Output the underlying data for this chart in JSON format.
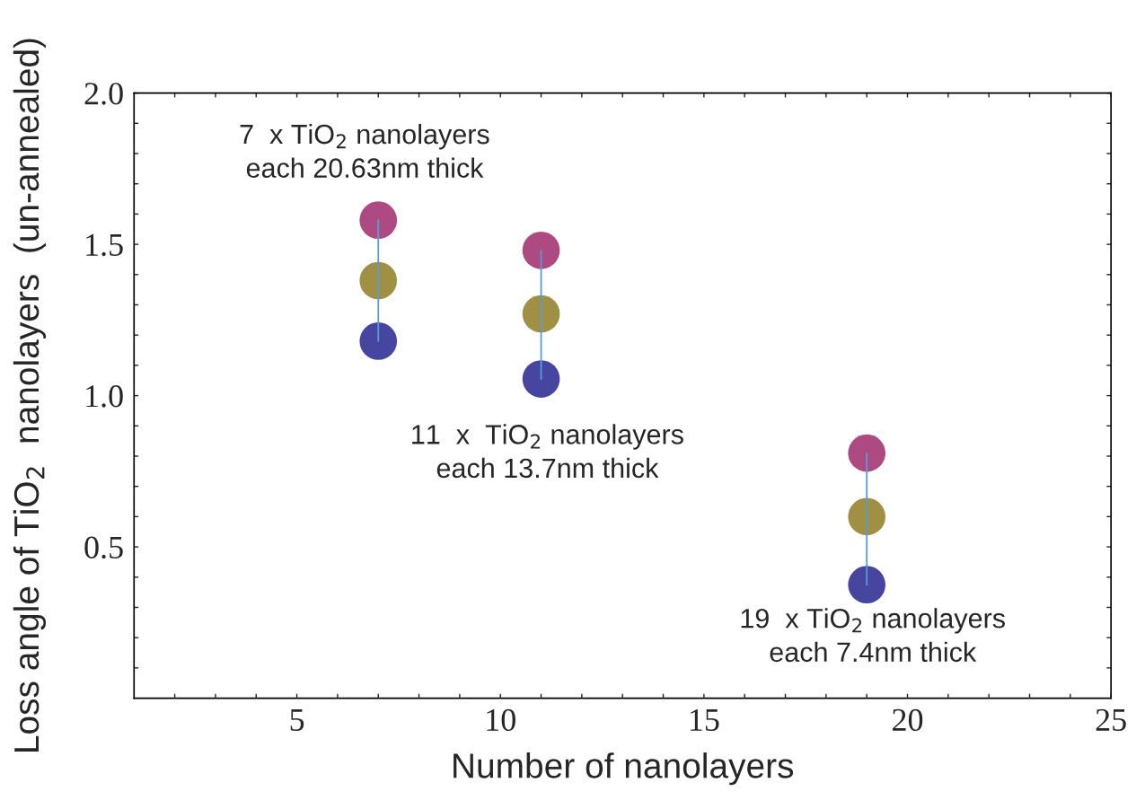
{
  "chart_data": {
    "type": "scatter",
    "xlabel": "Number of nanolayers",
    "ylabel": "Loss angle of TiO$_{2}$  nanolayers  (un-annealed)",
    "xlim": [
      1,
      25
    ],
    "ylim": [
      0,
      2.0
    ],
    "xticks": [
      {
        "value": 2,
        "label": null
      },
      {
        "value": 3,
        "label": null
      },
      {
        "value": 4,
        "label": null
      },
      5,
      {
        "value": 6,
        "label": null
      },
      {
        "value": 7,
        "label": null
      },
      {
        "value": 8,
        "label": null
      },
      {
        "value": 9,
        "label": null
      },
      10,
      {
        "value": 11,
        "label": null
      },
      {
        "value": 12,
        "label": null
      },
      {
        "value": 13,
        "label": null
      },
      {
        "value": 14,
        "label": null
      },
      15,
      {
        "value": 16,
        "label": null
      },
      {
        "value": 17,
        "label": null
      },
      {
        "value": 18,
        "label": null
      },
      {
        "value": 19,
        "label": null
      },
      20,
      {
        "value": 21,
        "label": null
      },
      {
        "value": 22,
        "label": null
      },
      {
        "value": 23,
        "label": null
      },
      {
        "value": 24,
        "label": null
      },
      25
    ],
    "yticks": [
      {
        "value": 0.1,
        "label": null
      },
      {
        "value": 0.2,
        "label": null
      },
      {
        "value": 0.3,
        "label": null
      },
      {
        "value": 0.4,
        "label": null
      },
      {
        "value": 0.5,
        "label": "0.5"
      },
      {
        "value": 0.6,
        "label": null
      },
      {
        "value": 0.7,
        "label": null
      },
      {
        "value": 0.8,
        "label": null
      },
      {
        "value": 0.9,
        "label": null
      },
      {
        "value": 1.0,
        "label": "1.0"
      },
      {
        "value": 1.1,
        "label": null
      },
      {
        "value": 1.2,
        "label": null
      },
      {
        "value": 1.3,
        "label": null
      },
      {
        "value": 1.4,
        "label": null
      },
      {
        "value": 1.5,
        "label": "1.5"
      },
      {
        "value": 1.6,
        "label": null
      },
      {
        "value": 1.7,
        "label": null
      },
      {
        "value": 1.8,
        "label": null
      },
      {
        "value": 1.9,
        "label": null
      },
      {
        "value": 2.0,
        "label": "2.0"
      }
    ],
    "x": [
      7,
      11,
      19
    ],
    "series": [
      {
        "type": "line",
        "color": "#5b9bd5",
        "marker": "none",
        "x": [
          7,
          7
        ],
        "values": [
          1.18,
          1.58
        ]
      },
      {
        "type": "line",
        "color": "#5b9bd5",
        "marker": "none",
        "x": [
          11,
          11
        ],
        "values": [
          1.055,
          1.48
        ]
      },
      {
        "type": "line",
        "color": "#5b9bd5",
        "marker": "none",
        "x": [
          19,
          19
        ],
        "values": [
          0.375,
          0.81
        ]
      },
      {
        "color": "#a8407a",
        "marker": "circle",
        "values": [
          1.58,
          1.48,
          0.81
        ]
      },
      {
        "color": "#9a8a3a",
        "marker": "circle",
        "values": [
          1.38,
          1.27,
          0.6
        ]
      },
      {
        "color": "#3c3c9c",
        "marker": "circle",
        "values": [
          1.18,
          1.055,
          0.375
        ]
      }
    ],
    "grid": false,
    "annotations": [
      "7  x TiO$_{2}$ nanolayers\neach 20.63nm thick",
      "11  x  TiO$_{2}$ nanolayers\neach 13.7nm thick",
      "19  x TiO$_{2}$ nanolayers\neach 7.4nm thick"
    ]
  }
}
